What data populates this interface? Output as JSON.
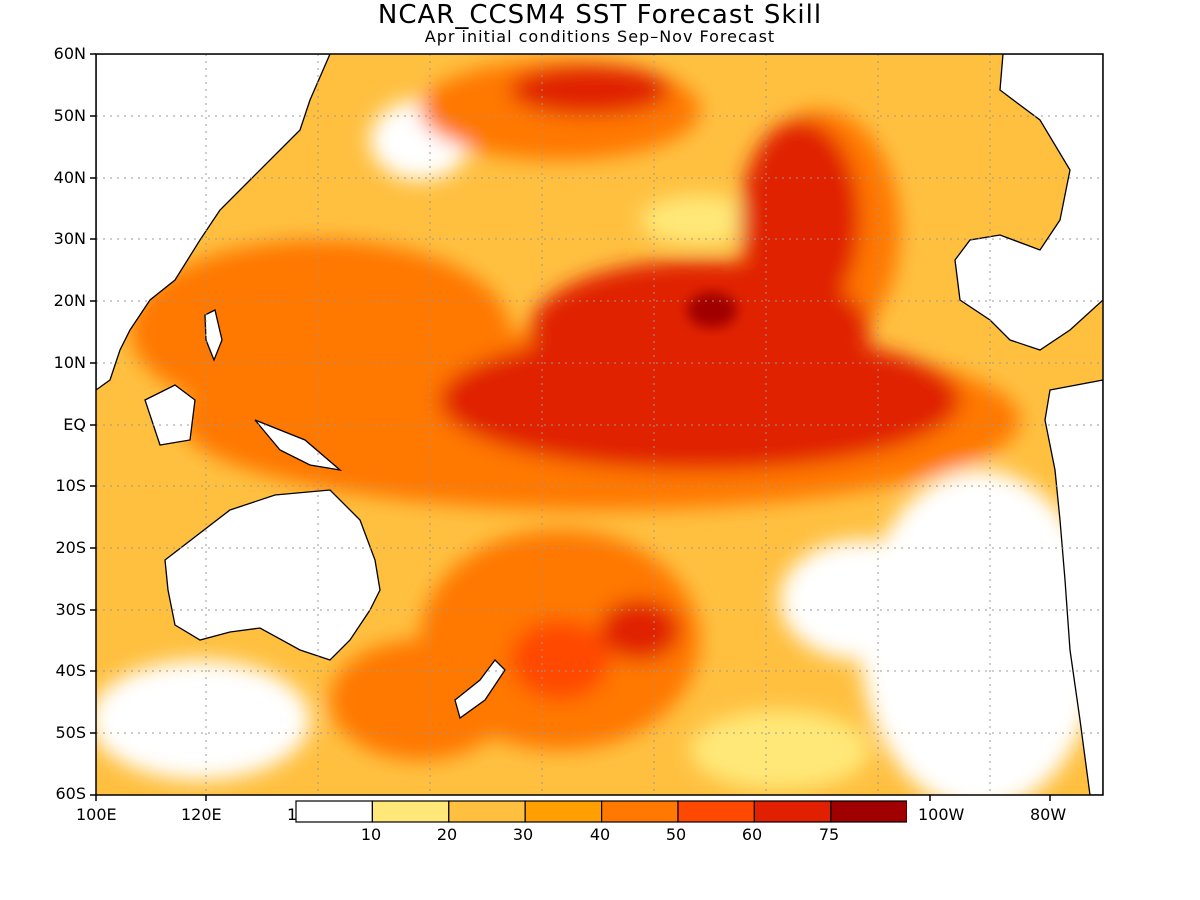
{
  "title": "NCAR_CCSM4 SST Forecast Skill",
  "subtitle": "Apr initial conditions   Sep–Nov Forecast",
  "lat_labels": [
    "60N",
    "50N",
    "40N",
    "30N",
    "20N",
    "10N",
    "EQ",
    "10S",
    "20S",
    "30S",
    "40S",
    "50S",
    "60S"
  ],
  "lon_labels": [
    "100E",
    "120E",
    "1",
    "100W",
    "80W"
  ],
  "colorbar": {
    "colors": [
      "#ffffff",
      "#ffe878",
      "#ffc040",
      "#ffa000",
      "#ff7800",
      "#ff4800",
      "#e02000",
      "#a00000"
    ],
    "labels": [
      "10",
      "20",
      "30",
      "40",
      "50",
      "60",
      "75"
    ]
  },
  "colors": {
    "land": "#ffffff",
    "coast": "#000000",
    "grid": "#999999"
  }
}
